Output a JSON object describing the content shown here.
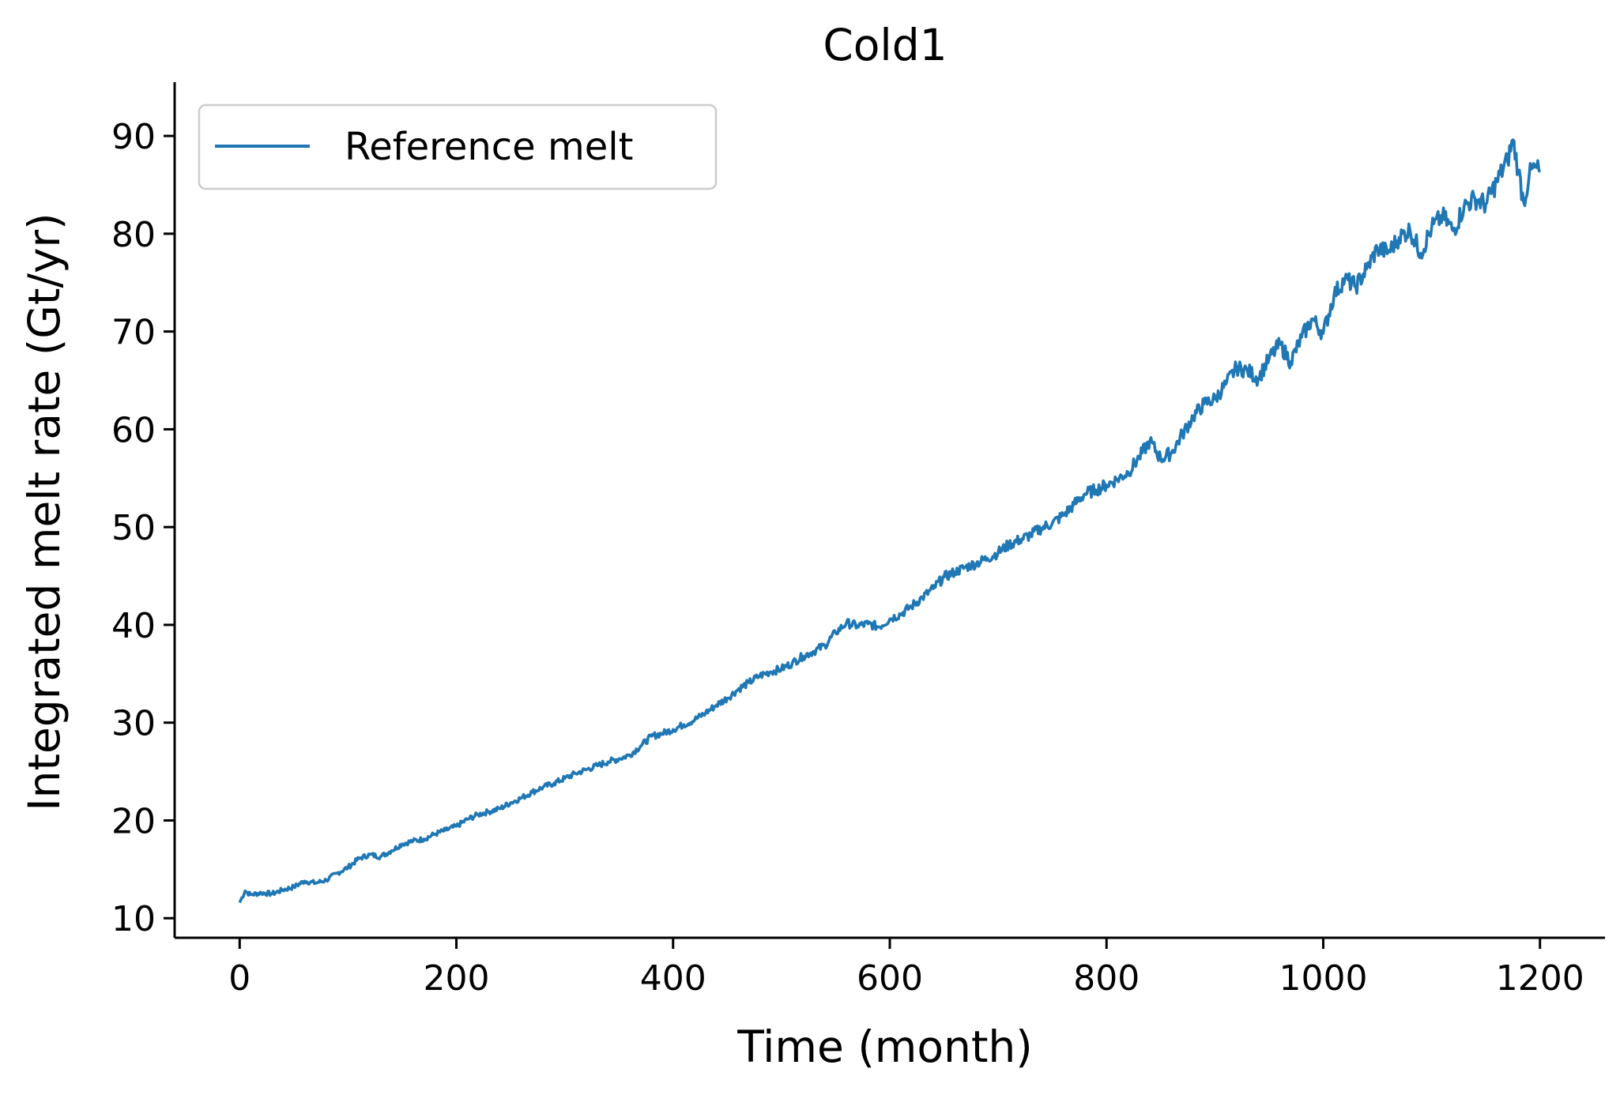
{
  "chart_data": {
    "type": "line",
    "title": "Cold1",
    "xlabel": "Time (month)",
    "ylabel": "Integrated melt rate (Gt/yr)",
    "xlim": [
      -60,
      1260
    ],
    "ylim": [
      8,
      95.5
    ],
    "xticks": [
      0,
      200,
      400,
      600,
      800,
      1000,
      1200
    ],
    "yticks": [
      10,
      20,
      30,
      40,
      50,
      60,
      70,
      80,
      90
    ],
    "grid": false,
    "legend_position": "upper-left",
    "series": [
      {
        "name": "Reference melt",
        "color": "#1f77b4",
        "points": [
          [
            0,
            11.6
          ],
          [
            5,
            12.8
          ],
          [
            10,
            12.4
          ],
          [
            20,
            12.6
          ],
          [
            30,
            12.5
          ],
          [
            40,
            12.9
          ],
          [
            50,
            13.2
          ],
          [
            60,
            13.8
          ],
          [
            70,
            13.6
          ],
          [
            80,
            13.9
          ],
          [
            90,
            14.6
          ],
          [
            100,
            15.2
          ],
          [
            110,
            16.1
          ],
          [
            120,
            16.5
          ],
          [
            130,
            16.3
          ],
          [
            140,
            16.9
          ],
          [
            150,
            17.6
          ],
          [
            160,
            17.9
          ],
          [
            170,
            18.1
          ],
          [
            180,
            18.6
          ],
          [
            190,
            19.0
          ],
          [
            200,
            19.4
          ],
          [
            210,
            20.1
          ],
          [
            220,
            20.6
          ],
          [
            230,
            20.9
          ],
          [
            240,
            21.2
          ],
          [
            250,
            21.8
          ],
          [
            260,
            22.3
          ],
          [
            270,
            22.9
          ],
          [
            280,
            23.4
          ],
          [
            290,
            23.8
          ],
          [
            300,
            24.3
          ],
          [
            310,
            24.8
          ],
          [
            320,
            25.2
          ],
          [
            330,
            25.6
          ],
          [
            340,
            26.0
          ],
          [
            350,
            26.3
          ],
          [
            360,
            26.7
          ],
          [
            370,
            27.6
          ],
          [
            380,
            28.6
          ],
          [
            390,
            28.9
          ],
          [
            400,
            29.3
          ],
          [
            410,
            29.8
          ],
          [
            420,
            30.3
          ],
          [
            430,
            31.0
          ],
          [
            440,
            31.8
          ],
          [
            450,
            32.5
          ],
          [
            460,
            33.4
          ],
          [
            470,
            34.1
          ],
          [
            480,
            34.8
          ],
          [
            490,
            35.2
          ],
          [
            500,
            35.5
          ],
          [
            510,
            36.1
          ],
          [
            520,
            36.8
          ],
          [
            530,
            37.3
          ],
          [
            540,
            37.9
          ],
          [
            550,
            39.2
          ],
          [
            560,
            40.2
          ],
          [
            570,
            39.9
          ],
          [
            580,
            40.1
          ],
          [
            590,
            39.8
          ],
          [
            600,
            40.6
          ],
          [
            610,
            41.1
          ],
          [
            620,
            41.9
          ],
          [
            630,
            42.8
          ],
          [
            640,
            43.7
          ],
          [
            650,
            44.9
          ],
          [
            660,
            45.4
          ],
          [
            670,
            45.9
          ],
          [
            680,
            46.3
          ],
          [
            690,
            46.8
          ],
          [
            700,
            47.4
          ],
          [
            710,
            48.2
          ],
          [
            720,
            48.7
          ],
          [
            730,
            49.2
          ],
          [
            740,
            49.9
          ],
          [
            750,
            50.4
          ],
          [
            760,
            51.2
          ],
          [
            770,
            52.3
          ],
          [
            780,
            53.4
          ],
          [
            790,
            53.8
          ],
          [
            800,
            54.3
          ],
          [
            810,
            54.9
          ],
          [
            820,
            55.6
          ],
          [
            830,
            57.1
          ],
          [
            840,
            58.8
          ],
          [
            850,
            57.0
          ],
          [
            860,
            57.6
          ],
          [
            870,
            59.5
          ],
          [
            880,
            61.3
          ],
          [
            890,
            62.6
          ],
          [
            900,
            63.1
          ],
          [
            910,
            64.6
          ],
          [
            920,
            66.3
          ],
          [
            930,
            66.0
          ],
          [
            940,
            65.2
          ],
          [
            950,
            67.2
          ],
          [
            960,
            68.7
          ],
          [
            970,
            66.9
          ],
          [
            980,
            69.4
          ],
          [
            990,
            71.3
          ],
          [
            1000,
            69.8
          ],
          [
            1010,
            73.8
          ],
          [
            1020,
            75.4
          ],
          [
            1030,
            74.6
          ],
          [
            1040,
            76.4
          ],
          [
            1050,
            78.5
          ],
          [
            1060,
            78.1
          ],
          [
            1070,
            79.6
          ],
          [
            1080,
            80.4
          ],
          [
            1090,
            78.0
          ],
          [
            1100,
            80.6
          ],
          [
            1110,
            81.8
          ],
          [
            1120,
            80.3
          ],
          [
            1130,
            82.8
          ],
          [
            1140,
            83.6
          ],
          [
            1150,
            83.0
          ],
          [
            1160,
            85.3
          ],
          [
            1170,
            87.5
          ],
          [
            1175,
            89.6
          ],
          [
            1180,
            86.5
          ],
          [
            1185,
            83.2
          ],
          [
            1190,
            85.9
          ],
          [
            1195,
            86.8
          ],
          [
            1200,
            86.3
          ]
        ]
      }
    ]
  }
}
